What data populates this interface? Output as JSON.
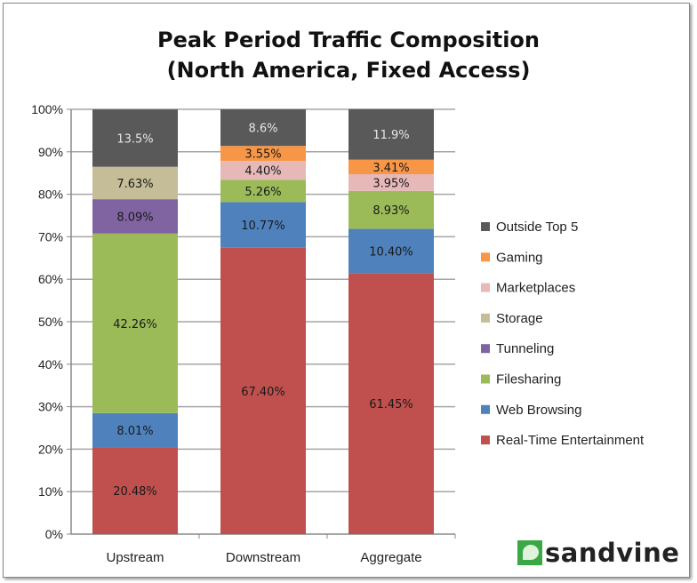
{
  "chart_data": {
    "type": "bar",
    "stacked": true,
    "title_line1": "Peak Period Traffic Composition",
    "title_line2": "(North America, Fixed Access)",
    "categories": [
      "Upstream",
      "Downstream",
      "Aggregate"
    ],
    "ylim": [
      0,
      100
    ],
    "yticks": [
      "0%",
      "10%",
      "20%",
      "30%",
      "40%",
      "50%",
      "60%",
      "70%",
      "80%",
      "90%",
      "100%"
    ],
    "legend_position": "right",
    "series": [
      {
        "name": "Real-Time Entertainment",
        "color": "#c0504d",
        "values": [
          20.48,
          67.4,
          61.45
        ],
        "labels": [
          "20.48%",
          "67.40%",
          "61.45%"
        ]
      },
      {
        "name": "Web Browsing",
        "color": "#4f81bd",
        "values": [
          8.01,
          10.77,
          10.4
        ],
        "labels": [
          "8.01%",
          "10.77%",
          "10.40%"
        ]
      },
      {
        "name": "Filesharing",
        "color": "#9bbb59",
        "values": [
          42.26,
          5.26,
          8.93
        ],
        "labels": [
          "42.26%",
          "5.26%",
          "8.93%"
        ]
      },
      {
        "name": "Tunneling",
        "color": "#8064a2",
        "values": [
          8.09,
          0,
          0
        ],
        "labels": [
          "8.09%",
          "",
          ""
        ]
      },
      {
        "name": "Storage",
        "color": "#c4bd97",
        "values": [
          7.63,
          0,
          0
        ],
        "labels": [
          "7.63%",
          "",
          ""
        ]
      },
      {
        "name": "Marketplaces",
        "color": "#e6b9b8",
        "values": [
          0,
          4.4,
          3.95
        ],
        "labels": [
          "",
          "4.40%",
          "3.95%"
        ]
      },
      {
        "name": "Gaming",
        "color": "#f79646",
        "values": [
          0,
          3.55,
          3.41
        ],
        "labels": [
          "",
          "3.55%",
          "3.41%"
        ]
      },
      {
        "name": "Outside Top 5",
        "color": "#595959",
        "values": [
          13.5,
          8.6,
          11.9
        ],
        "labels": [
          "13.5%",
          "8.6%",
          "11.9%"
        ]
      }
    ]
  },
  "logo": {
    "text": "sandvine"
  }
}
